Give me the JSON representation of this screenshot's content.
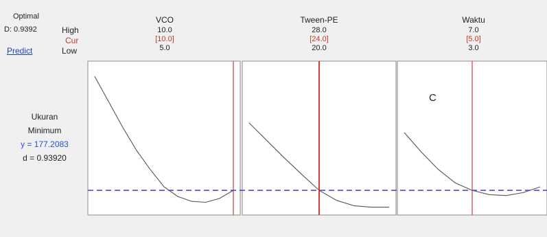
{
  "header": {
    "optimal_label": "Optimal",
    "d_value": "D: 0.9392",
    "predict_link": "Predict",
    "high_label": "High",
    "cur_label": "Cur",
    "low_label": "Low"
  },
  "factors": [
    {
      "name": "VCO",
      "high": "10.0",
      "cur": "[10.0]",
      "low": "5.0"
    },
    {
      "name": "Tween-PE",
      "high": "28.0",
      "cur": "[24.0]",
      "low": "20.0"
    },
    {
      "name": "Waktu",
      "high": "7.0",
      "cur": "[5.0]",
      "low": "3.0"
    }
  ],
  "response": {
    "name_line1": "Ukuran",
    "name_line2": "Minimum",
    "y_text": "y = 177.2083",
    "d_text": "d = 0.93920"
  },
  "annotation": "C",
  "colors": {
    "curve": "#555555",
    "current_line": "#d33b3b",
    "target_line": "#4a4fc9",
    "panel_bg": "#ffffff",
    "bg": "#f0f0f0"
  },
  "chart_data": {
    "type": "line",
    "title": "",
    "target_y": 177.2083,
    "ylim": [
      168,
      240
    ],
    "panels": [
      {
        "factor": "VCO",
        "xlim": [
          5.0,
          10.0
        ],
        "current": 10.0,
        "x": [
          5.0,
          5.5,
          6.0,
          6.5,
          7.0,
          7.5,
          8.0,
          8.5,
          9.0,
          9.5,
          10.0
        ],
        "y": [
          236,
          223,
          210,
          198,
          188,
          179,
          174,
          171.5,
          171,
          173,
          177.2
        ]
      },
      {
        "factor": "Tween-PE",
        "xlim": [
          20.0,
          28.0
        ],
        "current": 24.0,
        "x": [
          20.0,
          21.0,
          22.0,
          23.0,
          24.0,
          25.0,
          26.0,
          27.0,
          28.0
        ],
        "y": [
          212,
          203,
          194,
          185.5,
          177.2,
          172,
          169.2,
          168.5,
          168.5
        ]
      },
      {
        "factor": "Waktu",
        "xlim": [
          3.0,
          7.0
        ],
        "current": 5.0,
        "x": [
          3.0,
          3.5,
          4.0,
          4.5,
          5.0,
          5.5,
          6.0,
          6.5,
          7.0
        ],
        "y": [
          207,
          197,
          188,
          181,
          177.2,
          175,
          174.5,
          176,
          179
        ]
      }
    ]
  }
}
